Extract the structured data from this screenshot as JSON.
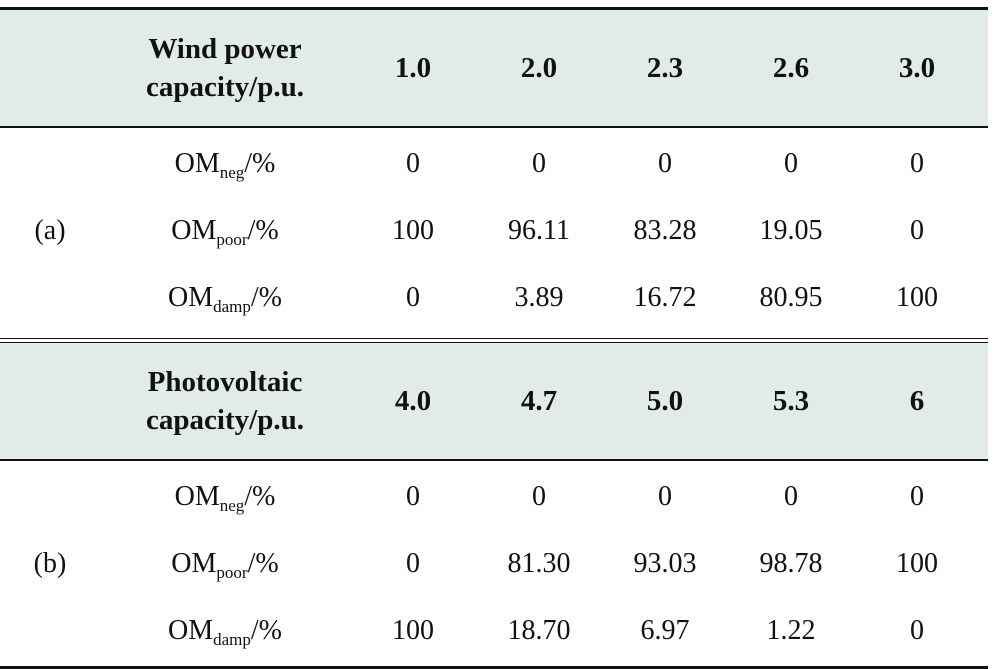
{
  "section_a": {
    "label": "(a)",
    "header": {
      "line1": "Wind power",
      "line2": "capacity/p.u.",
      "values": [
        "1.0",
        "2.0",
        "2.3",
        "2.6",
        "3.0"
      ]
    },
    "rows": [
      {
        "base": "OM",
        "sub": "neg",
        "suffix": "/%",
        "values": [
          "0",
          "0",
          "0",
          "0",
          "0"
        ]
      },
      {
        "base": "OM",
        "sub": "poor",
        "suffix": "/%",
        "values": [
          "100",
          "96.11",
          "83.28",
          "19.05",
          "0"
        ]
      },
      {
        "base": "OM",
        "sub": "damp",
        "suffix": "/%",
        "values": [
          "0",
          "3.89",
          "16.72",
          "80.95",
          "100"
        ]
      }
    ]
  },
  "section_b": {
    "label": "(b)",
    "header": {
      "line1": "Photovoltaic",
      "line2": "capacity/p.u.",
      "values": [
        "4.0",
        "4.7",
        "5.0",
        "5.3",
        "6"
      ]
    },
    "rows": [
      {
        "base": "OM",
        "sub": "neg",
        "suffix": "/%",
        "values": [
          "0",
          "0",
          "0",
          "0",
          "0"
        ]
      },
      {
        "base": "OM",
        "sub": "poor",
        "suffix": "/%",
        "values": [
          "0",
          "81.30",
          "93.03",
          "98.78",
          "100"
        ]
      },
      {
        "base": "OM",
        "sub": "damp",
        "suffix": "/%",
        "values": [
          "100",
          "18.70",
          "6.97",
          "1.22",
          "0"
        ]
      }
    ]
  }
}
